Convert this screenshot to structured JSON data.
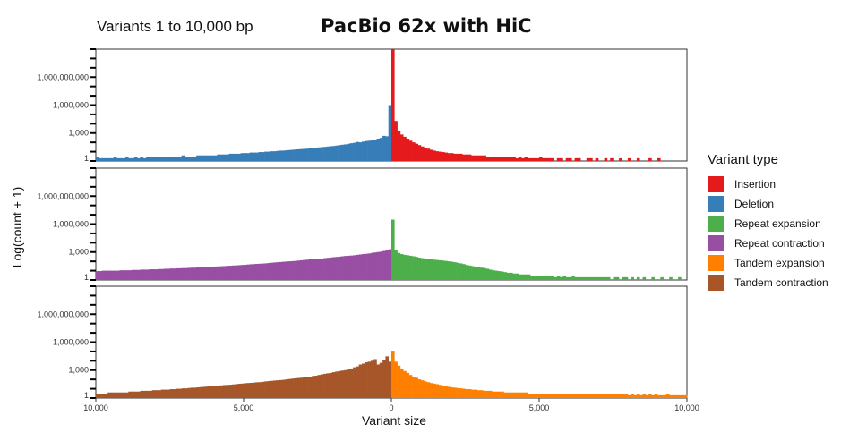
{
  "subtitle": "Variants 1 to 10,000 bp",
  "title": "PacBio 62x with HiC",
  "chart_data": {
    "type": "bar",
    "y_axis_label": "Log(count + 1)",
    "x_axis_label": "Variant size",
    "x_tick_labels": [
      "10,000",
      "5,000",
      "0",
      "5,000",
      "10,000"
    ],
    "x_ticks": [
      -10000,
      -5000,
      0,
      5000,
      10000
    ],
    "y_tick_labels": [
      "1",
      "1,000",
      "1,000,000",
      "1,000,000,000"
    ],
    "y_ticks": [
      1,
      1000,
      1000000,
      1000000000
    ],
    "y_scale": "log10(count+1)",
    "ylim": [
      1,
      1000000000000
    ],
    "xlim": [
      -10000,
      10000
    ],
    "grid": false,
    "legend_placement": "right",
    "legend": {
      "title": "Variant type",
      "items": [
        {
          "label": "Insertion",
          "color": "#e41a1c"
        },
        {
          "label": "Deletion",
          "color": "#377eb8"
        },
        {
          "label": "Repeat expansion",
          "color": "#4daf4a"
        },
        {
          "label": "Repeat contraction",
          "color": "#984ea3"
        },
        {
          "label": "Tandem expansion",
          "color": "#ff7f00"
        },
        {
          "label": "Tandem contraction",
          "color": "#a65628"
        }
      ]
    },
    "panels": [
      {
        "negative_series": "Deletion",
        "negative_color": "#377eb8",
        "positive_series": "Insertion",
        "positive_color": "#e41a1c",
        "negative_bins_from_zero": [
          1000000,
          450,
          500,
          300,
          250,
          180,
          200,
          150,
          140,
          120,
          100,
          110,
          90,
          80,
          70,
          60,
          55,
          50,
          45,
          40,
          38,
          35,
          32,
          30,
          28,
          25,
          24,
          22,
          20,
          19,
          18,
          17,
          16,
          15,
          14,
          13,
          12,
          12,
          11,
          10,
          10,
          9,
          9,
          8,
          8,
          7,
          7,
          7,
          6,
          6,
          6,
          5,
          5,
          5,
          5,
          4,
          4,
          4,
          4,
          3,
          3,
          3,
          3,
          3,
          3,
          3,
          2,
          2,
          2,
          2,
          3,
          2,
          2,
          2,
          2,
          2,
          2,
          2,
          2,
          2,
          2,
          2,
          2,
          1,
          2,
          1,
          2,
          1,
          1,
          2,
          1,
          1,
          1,
          2,
          1,
          1,
          1,
          1,
          1,
          2
        ],
        "positive_bins_from_zero": [
          8000000000000,
          20000,
          1500,
          700,
          400,
          250,
          150,
          100,
          70,
          50,
          35,
          25,
          20,
          15,
          12,
          10,
          9,
          8,
          7,
          6,
          6,
          5,
          5,
          5,
          4,
          4,
          4,
          3,
          3,
          3,
          3,
          3,
          2,
          2,
          2,
          2,
          2,
          2,
          2,
          2,
          2,
          2,
          1,
          2,
          1,
          2,
          1,
          1,
          1,
          1,
          2,
          1,
          1,
          1,
          1,
          0,
          1,
          1,
          0,
          1,
          1,
          0,
          1,
          1,
          0,
          0,
          1,
          1,
          0,
          1,
          0,
          0,
          1,
          0,
          1,
          0,
          0,
          1,
          0,
          0,
          1,
          0,
          0,
          1,
          0,
          0,
          0,
          1,
          0,
          0,
          1,
          0,
          0,
          0,
          0,
          0,
          0,
          0,
          0,
          0
        ]
      },
      {
        "negative_series": "Repeat contraction",
        "negative_color": "#984ea3",
        "positive_series": "Repeat expansion",
        "positive_color": "#4daf4a",
        "negative_bins_from_zero": [
          2000,
          1500,
          1300,
          1100,
          1000,
          900,
          800,
          700,
          650,
          600,
          550,
          500,
          450,
          420,
          400,
          380,
          350,
          320,
          300,
          280,
          260,
          240,
          220,
          200,
          190,
          180,
          170,
          160,
          150,
          140,
          130,
          120,
          110,
          105,
          100,
          95,
          90,
          85,
          80,
          75,
          70,
          65,
          60,
          58,
          55,
          52,
          50,
          48,
          45,
          42,
          40,
          38,
          36,
          35,
          33,
          32,
          30,
          29,
          28,
          27,
          26,
          25,
          24,
          23,
          22,
          21,
          20,
          20,
          19,
          18,
          18,
          17,
          17,
          16,
          16,
          15,
          15,
          14,
          14,
          13,
          13,
          13,
          12,
          12,
          12,
          11,
          11,
          11,
          10,
          10,
          10,
          10,
          9,
          9,
          9,
          9,
          9,
          9,
          8,
          8
        ],
        "positive_bins_from_zero": [
          3000000,
          1500,
          800,
          600,
          500,
          450,
          400,
          350,
          300,
          250,
          220,
          200,
          180,
          160,
          150,
          140,
          130,
          120,
          110,
          100,
          90,
          80,
          70,
          60,
          50,
          40,
          35,
          30,
          25,
          22,
          20,
          18,
          15,
          12,
          10,
          9,
          8,
          7,
          6,
          5,
          5,
          4,
          4,
          3,
          3,
          3,
          3,
          2,
          2,
          2,
          2,
          2,
          2,
          2,
          2,
          1,
          2,
          1,
          2,
          1,
          1,
          2,
          1,
          1,
          1,
          1,
          1,
          1,
          1,
          1,
          1,
          1,
          1,
          1,
          0,
          1,
          1,
          0,
          1,
          1,
          0,
          1,
          0,
          1,
          0,
          1,
          0,
          0,
          1,
          0,
          0,
          1,
          0,
          0,
          1,
          0,
          0,
          1,
          0,
          0
        ]
      },
      {
        "negative_series": "Tandem contraction",
        "negative_color": "#a65628",
        "positive_series": "Tandem expansion",
        "positive_color": "#ff7f00",
        "negative_bins_from_zero": [
          8000,
          30000,
          12000,
          6000,
          4000,
          15000,
          10000,
          8000,
          7000,
          5000,
          4000,
          2500,
          2000,
          1500,
          1200,
          1000,
          900,
          800,
          700,
          600,
          500,
          450,
          400,
          350,
          300,
          250,
          230,
          200,
          180,
          160,
          150,
          140,
          130,
          120,
          110,
          100,
          90,
          85,
          80,
          75,
          70,
          65,
          60,
          55,
          50,
          48,
          45,
          42,
          40,
          38,
          35,
          33,
          30,
          28,
          26,
          25,
          24,
          22,
          20,
          19,
          18,
          17,
          16,
          15,
          14,
          13,
          12,
          12,
          11,
          10,
          10,
          9,
          9,
          8,
          8,
          7,
          7,
          7,
          6,
          6,
          6,
          5,
          5,
          5,
          5,
          4,
          4,
          4,
          4,
          3,
          3,
          3,
          3,
          3,
          3,
          3,
          2,
          2,
          2,
          2
        ],
        "positive_bins_from_zero": [
          120000,
          8000,
          3000,
          1500,
          800,
          500,
          300,
          200,
          150,
          100,
          80,
          60,
          50,
          40,
          35,
          30,
          25,
          20,
          18,
          15,
          13,
          12,
          11,
          10,
          9,
          8,
          8,
          7,
          7,
          6,
          6,
          5,
          5,
          5,
          4,
          4,
          4,
          4,
          3,
          3,
          3,
          3,
          3,
          3,
          3,
          3,
          2,
          2,
          2,
          2,
          2,
          2,
          2,
          2,
          2,
          2,
          2,
          2,
          2,
          2,
          2,
          2,
          2,
          2,
          2,
          2,
          2,
          2,
          2,
          2,
          2,
          2,
          2,
          2,
          2,
          2,
          2,
          2,
          2,
          2,
          1,
          2,
          1,
          2,
          1,
          2,
          1,
          2,
          1,
          2,
          1,
          1,
          1,
          2,
          1,
          1,
          1,
          1,
          1,
          1
        ]
      }
    ]
  }
}
